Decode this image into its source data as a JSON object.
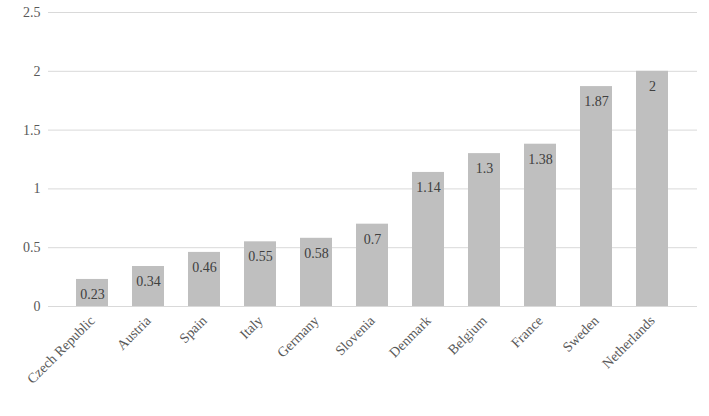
{
  "chart_data": {
    "type": "bar",
    "categories": [
      "Czech Republic",
      "Austria",
      "Spain",
      "Italy",
      "Germany",
      "Slovenia",
      "Denmark",
      "Belgium",
      "France",
      "Sweden",
      "Netherlands"
    ],
    "values": [
      0.23,
      0.34,
      0.46,
      0.55,
      0.58,
      0.7,
      1.14,
      1.3,
      1.38,
      1.87,
      2
    ],
    "color": "#bfbfbf",
    "ylim": [
      0,
      2.5
    ],
    "yticks": [
      0,
      0.5,
      1,
      1.5,
      2,
      2.5
    ],
    "grid": true,
    "data_labels": true
  }
}
